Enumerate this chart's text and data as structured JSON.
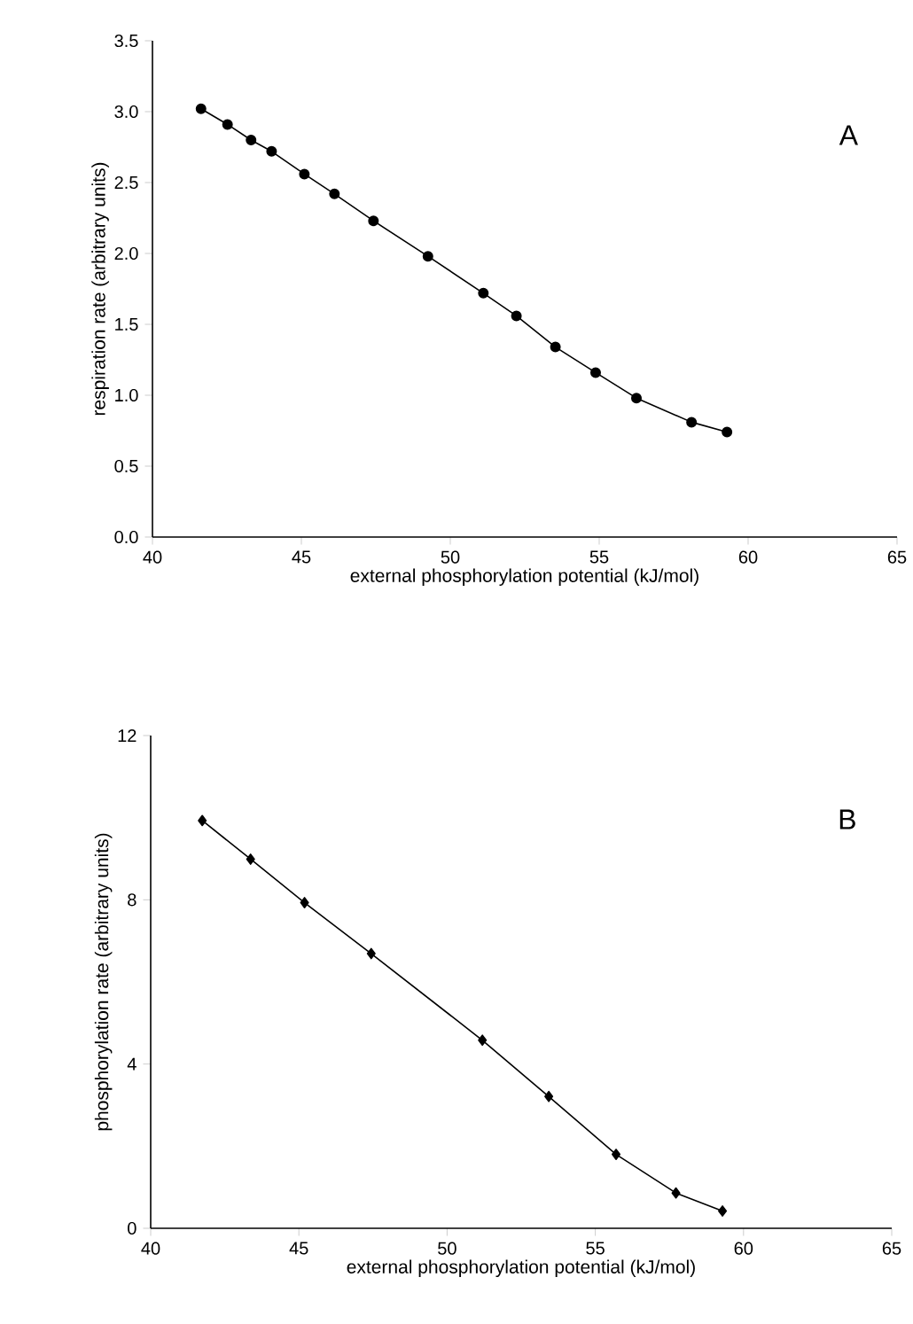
{
  "chart_data": [
    {
      "type": "line",
      "xlabel": "external phosphorylation potential (kJ/mol)",
      "ylabel": "respiration rate (arbitrary units)",
      "annotations": [
        "A"
      ],
      "marker": "circle",
      "line_style": "solid",
      "grid": false,
      "xlim": [
        40,
        65
      ],
      "xticks": [
        40,
        45,
        50,
        55,
        60,
        65
      ],
      "ylim": [
        0,
        3.5
      ],
      "yticks": [
        {
          "value": 0,
          "label": "0.0"
        },
        {
          "value": 0.5,
          "label": "0.5"
        },
        {
          "value": 1,
          "label": "1.0"
        },
        {
          "value": 1.5,
          "label": "1.5"
        },
        {
          "value": 2,
          "label": "2.0"
        },
        {
          "value": 2.5,
          "label": "2.5"
        },
        {
          "value": 3,
          "label": "3.0"
        },
        {
          "value": 3.5,
          "label": "3.5"
        }
      ],
      "series": [
        {
          "color": "#000000",
          "x": [
            41.63,
            42.52,
            43.31,
            44.0,
            45.1,
            46.11,
            47.42,
            49.25,
            51.11,
            52.22,
            53.53,
            54.88,
            56.25,
            58.1,
            59.29
          ],
          "values": [
            3.02,
            2.91,
            2.8,
            2.72,
            2.56,
            2.42,
            2.23,
            1.98,
            1.72,
            1.56,
            1.34,
            1.16,
            0.98,
            0.81,
            0.74
          ]
        }
      ]
    },
    {
      "type": "line",
      "xlabel": "external phosphorylation potential (kJ/mol)",
      "ylabel": "phosphorylation rate (arbitrary units)",
      "annotations": [
        "B"
      ],
      "marker": "diamond",
      "line_style": "solid",
      "grid": false,
      "xlim": [
        40,
        65
      ],
      "xticks": [
        40,
        45,
        50,
        55,
        60,
        65
      ],
      "ylim": [
        0,
        12
      ],
      "yticks": [
        0,
        4,
        8,
        12
      ],
      "series": [
        {
          "color": "#000000",
          "x": [
            41.74,
            43.37,
            45.19,
            47.44,
            51.19,
            53.43,
            55.7,
            57.72,
            59.29
          ],
          "values": [
            9.93,
            8.99,
            7.93,
            6.69,
            4.58,
            3.21,
            1.8,
            0.86,
            0.42
          ]
        }
      ]
    }
  ]
}
